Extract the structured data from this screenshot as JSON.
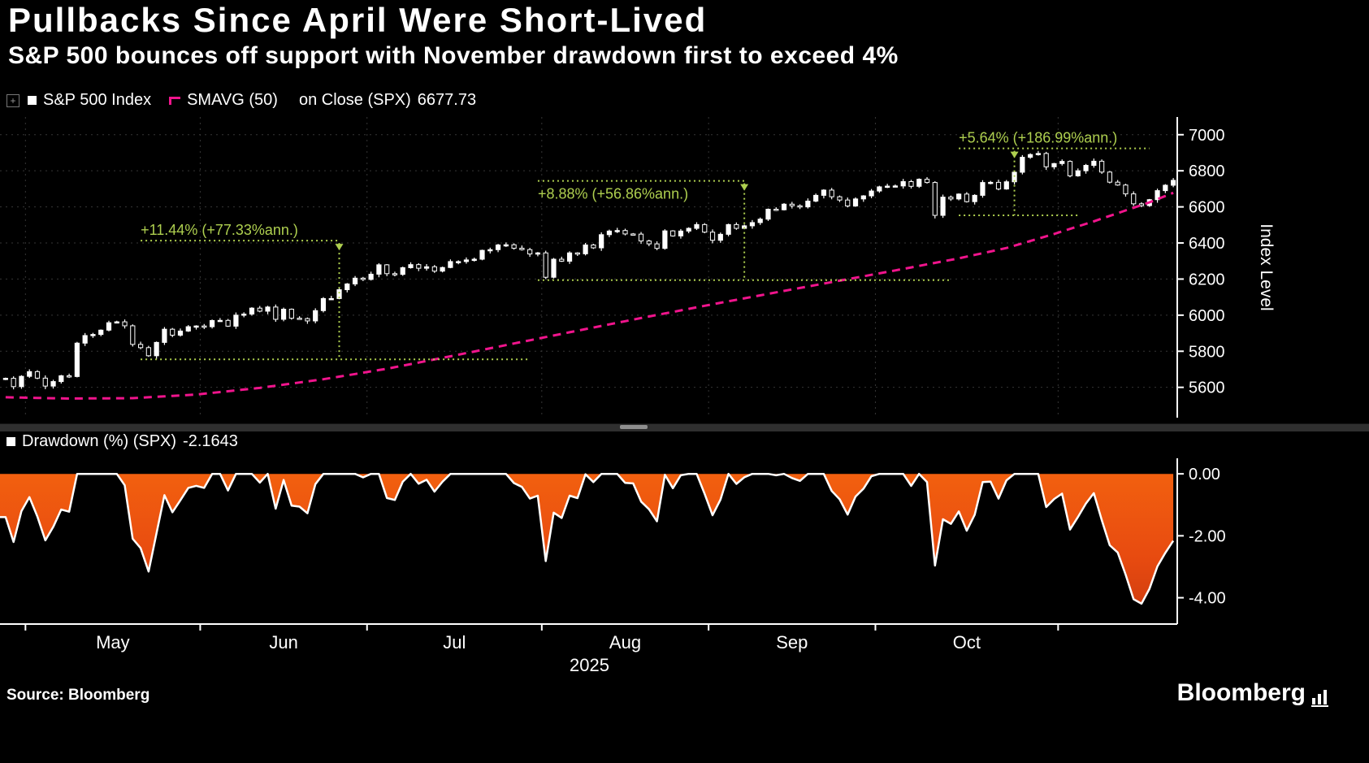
{
  "header": {
    "title": "Pullbacks Since April Were Short-Lived",
    "subtitle": "S&P 500 bounces off support with November drawdown first to exceed 4%"
  },
  "legend_top": {
    "series1_label": "S&P 500 Index",
    "series2_label": "SMAVG (50)",
    "series2_sublabel": "on Close (SPX)",
    "series2_value": "6677.73"
  },
  "legend_bottom": {
    "label": "Drawdown (%) (SPX)",
    "value": "-2.1643"
  },
  "footer": {
    "source": "Source: Bloomberg",
    "brand": "Bloomberg"
  },
  "icons": {
    "expand": "+"
  },
  "colors": {
    "background": "#000000",
    "candle": "#ffffff",
    "smavg": "#f0148c",
    "annotation": "#aecf4f",
    "axis": "#ffffff",
    "grid": "#363636",
    "drawdown_top": "#f2600f",
    "drawdown_mid": "#e84b10",
    "drawdown_deep": "#cc3a10"
  },
  "chart_data": [
    {
      "type": "candlestick+line",
      "name": "S&P 500 Index with SMAVG(50) overlay",
      "ylabel": "Index Level",
      "ylim": [
        5450,
        7080
      ],
      "yticks": [
        5600,
        5800,
        6000,
        6200,
        6400,
        6600,
        6800,
        7000
      ],
      "grid": true,
      "legend_position": "top-left",
      "month_boundaries": [
        3,
        25,
        46,
        68,
        89,
        110,
        133
      ],
      "month_labels": [
        "May",
        "Jun",
        "Jul",
        "Aug",
        "Sep",
        "Oct"
      ],
      "year_label": "2025",
      "smavg_last": 6677.73,
      "closes": [
        5650,
        5604,
        5661,
        5687,
        5651,
        5607,
        5632,
        5664,
        5660,
        5845,
        5887,
        5893,
        5917,
        5958,
        5963,
        5941,
        5838,
        5820,
        5775,
        5849,
        5922,
        5889,
        5912,
        5936,
        5940,
        5936,
        5970,
        5971,
        5939,
        6000,
        6006,
        6039,
        6022,
        6045,
        5977,
        6033,
        5983,
        5981,
        5968,
        6025,
        6092,
        6092,
        6141,
        6173,
        6205,
        6198,
        6227,
        6279,
        6230,
        6226,
        6263,
        6280,
        6260,
        6268,
        6244,
        6264,
        6297,
        6297,
        6306,
        6310,
        6359,
        6363,
        6389,
        6390,
        6371,
        6363,
        6339,
        6345,
        6210,
        6310,
        6299,
        6345,
        6340,
        6389,
        6373,
        6446,
        6466,
        6469,
        6450,
        6449,
        6411,
        6395,
        6370,
        6467,
        6439,
        6466,
        6481,
        6502,
        6460,
        6415,
        6448,
        6502,
        6481,
        6495,
        6513,
        6532,
        6587,
        6584,
        6615,
        6606,
        6600,
        6632,
        6664,
        6693,
        6656,
        6638,
        6605,
        6644,
        6661,
        6688,
        6711,
        6715,
        6716,
        6740,
        6714,
        6753,
        6735,
        6553,
        6654,
        6644,
        6671,
        6629,
        6664,
        6735,
        6736,
        6699,
        6739,
        6792,
        6875,
        6890,
        6896,
        6822,
        6840,
        6852,
        6772,
        6800,
        6830,
        6853,
        6793,
        6737,
        6721,
        6672,
        6617,
        6607,
        6640,
        6690,
        6720,
        6747
      ],
      "smavg_points": [
        [
          0,
          5545
        ],
        [
          8,
          5538
        ],
        [
          16,
          5540
        ],
        [
          24,
          5560
        ],
        [
          32,
          5597
        ],
        [
          40,
          5645
        ],
        [
          48,
          5703
        ],
        [
          56,
          5772
        ],
        [
          64,
          5843
        ],
        [
          72,
          5914
        ],
        [
          80,
          5984
        ],
        [
          88,
          6052
        ],
        [
          96,
          6118
        ],
        [
          104,
          6183
        ],
        [
          112,
          6248
        ],
        [
          120,
          6315
        ],
        [
          126,
          6372
        ],
        [
          132,
          6450
        ],
        [
          137,
          6520
        ],
        [
          141,
          6580
        ],
        [
          144,
          6625
        ],
        [
          147,
          6677.73
        ]
      ],
      "annotations": [
        {
          "label": "+11.44% (+77.33%ann.)",
          "base_value": 5755,
          "top_value": 6413,
          "base_span": [
            17,
            66
          ],
          "top_span": [
            17,
            42
          ],
          "arrow_index": 42,
          "label_index": 17,
          "label_below": false
        },
        {
          "label": "+8.88% (+56.86%ann.)",
          "base_value": 6194,
          "top_value": 6744,
          "base_span": [
            67,
            119
          ],
          "top_span": [
            67,
            93
          ],
          "arrow_index": 93,
          "label_index": 67,
          "label_below": true
        },
        {
          "label": "+5.64% (+186.99%ann.)",
          "base_value": 6553,
          "top_value": 6924,
          "base_span": [
            120,
            135
          ],
          "top_span": [
            120,
            144
          ],
          "arrow_index": 127,
          "label_index": 120,
          "label_below": false
        }
      ]
    },
    {
      "type": "area",
      "name": "Drawdown (%) (SPX)",
      "last_value": -2.1643,
      "initial_peak": 5730,
      "derivation": "close / running_max(close) - 1 (percent), from chart 1 closes",
      "ylim": [
        -4.85,
        0.45
      ],
      "yticks": [
        0,
        -2,
        -4
      ],
      "ytick_labels": [
        "0.00",
        "-2.00",
        "-4.00"
      ]
    }
  ]
}
